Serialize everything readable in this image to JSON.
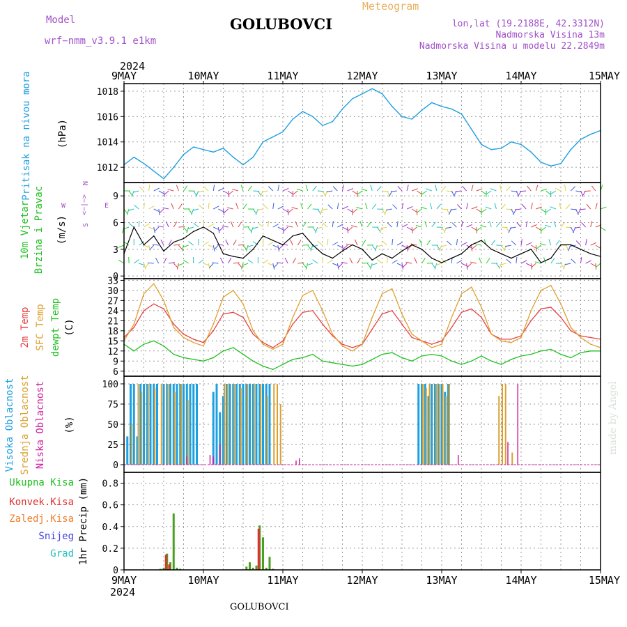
{
  "header": {
    "model_label": "Model",
    "model_name": "wrf−nmm_v3.9.1 e1km",
    "station": "GOLUBOVCI",
    "app_title": "Meteogram",
    "lonlat": "lon,lat (19.2188E, 42.3312N)",
    "elevation": "Nadmorska Visina 13m",
    "model_elevation": "Nadmorska Visina u modelu 22.2849m",
    "footer_station": "GOLUBOVCI",
    "credit": "made by Angel"
  },
  "colors": {
    "pressure": "#1e9fe0",
    "temp2m": "#e84040",
    "sfc": "#e0a030",
    "dewpt": "#20c020",
    "high_cloud": "#1e9fe0",
    "mid_cloud": "#d8a030",
    "low_cloud": "#d020a0",
    "total_precip": "#4aa020",
    "conv_precip": "#e03030",
    "frz_precip": "#f08030",
    "snow": "#4040e0",
    "hail": "#20c0c0",
    "purple_text": "#a050c8"
  },
  "time_axis": {
    "year": "2024",
    "days": [
      "9MAY",
      "10MAY",
      "11MAY",
      "12MAY",
      "13MAY",
      "14MAY",
      "15MAY"
    ]
  },
  "panels": {
    "pressure": {
      "ylabel_a": "Pritisak na nivou mora",
      "unit": "(hPa)",
      "ticks": [
        "1012",
        "1014",
        "1016",
        "1018"
      ]
    },
    "wind": {
      "ylabel_a": "10m Vjetar",
      "ylabel_b": "Brzina i Pravac",
      "unit": "(m/s)",
      "ticks": [
        "0",
        "3",
        "6",
        "9"
      ],
      "compass": {
        "w": "W",
        "e": "E",
        "n": "N",
        "s": "S",
        "arrow": "<−|−>"
      }
    },
    "temp": {
      "ylabel_a": "2m Temp",
      "ylabel_b": "SFC Temp",
      "ylabel_c": "dewpt Temp",
      "unit": "(C)",
      "ticks": [
        "6",
        "9",
        "12",
        "15",
        "18",
        "21",
        "24",
        "27",
        "30",
        "33"
      ]
    },
    "cloud": {
      "ylabel_a": "Visoka Oblacnost",
      "ylabel_b": "Srednja Oblacnost",
      "ylabel_c": "Niska Oblacnost",
      "unit": "(%)",
      "ticks": [
        "0",
        "25",
        "50",
        "75",
        "100"
      ]
    },
    "precip": {
      "legend": [
        "Ukupna Kisa",
        "Konvek.Kisa",
        "Zaledj.Kisa",
        "Snijeg",
        "Grad"
      ],
      "ylabel": "1hr Precip (mm)",
      "ticks": [
        "0",
        "0.2",
        "0.4",
        "0.6",
        "0.8"
      ]
    }
  },
  "chart_data": [
    {
      "type": "line",
      "name": "pressure",
      "x_unit": "hours since 9 MAY 00UTC",
      "ylim": [
        1010.8,
        1018.6
      ],
      "series": [
        {
          "name": "Pritisak na nivou mora",
          "x": [
            0,
            3,
            6,
            9,
            12,
            15,
            18,
            21,
            24,
            27,
            30,
            33,
            36,
            39,
            42,
            45,
            48,
            51,
            54,
            57,
            60,
            63,
            66,
            69,
            72,
            75,
            78,
            81,
            84,
            87,
            90,
            93,
            96,
            99,
            102,
            105,
            108,
            111,
            114,
            117,
            120,
            123,
            126,
            129,
            132,
            135,
            138,
            141,
            144
          ],
          "y": [
            1012.2,
            1012.8,
            1012.3,
            1011.7,
            1011.1,
            1012.0,
            1013.0,
            1013.6,
            1013.4,
            1013.2,
            1013.5,
            1012.8,
            1012.2,
            1012.8,
            1014.0,
            1014.4,
            1014.8,
            1015.8,
            1016.4,
            1016.0,
            1015.3,
            1015.6,
            1016.6,
            1017.4,
            1017.8,
            1018.2,
            1017.8,
            1016.8,
            1016.0,
            1015.8,
            1016.5,
            1017.1,
            1016.8,
            1016.6,
            1016.2,
            1015.0,
            1013.8,
            1013.4,
            1013.5,
            1014.0,
            1013.8,
            1013.2,
            1012.4,
            1012.1,
            1012.3,
            1013.4,
            1014.2,
            1014.6,
            1014.9
          ]
        }
      ]
    },
    {
      "type": "line",
      "name": "wind",
      "x_unit": "hours since 9 MAY 00UTC",
      "ylim": [
        -0.3,
        10.5
      ],
      "series": [
        {
          "name": "wind speed",
          "x": [
            0,
            3,
            6,
            9,
            12,
            15,
            18,
            21,
            24,
            27,
            30,
            33,
            36,
            39,
            42,
            45,
            48,
            51,
            54,
            57,
            60,
            63,
            66,
            69,
            72,
            75,
            78,
            81,
            84,
            87,
            90,
            93,
            96,
            99,
            102,
            105,
            108,
            111,
            114,
            117,
            120,
            123,
            126,
            129,
            132,
            135,
            138,
            141,
            144
          ],
          "y": [
            2.5,
            5.5,
            3.5,
            4.5,
            2.8,
            3.8,
            4.2,
            5.0,
            5.5,
            4.8,
            2.5,
            2.2,
            2.0,
            3.0,
            4.5,
            4.0,
            3.5,
            4.5,
            4.8,
            3.5,
            2.5,
            2.0,
            2.8,
            3.5,
            3.0,
            1.8,
            2.5,
            2.0,
            2.8,
            3.5,
            3.0,
            2.0,
            1.5,
            2.0,
            2.5,
            3.5,
            4.0,
            3.0,
            2.5,
            2.0,
            2.5,
            3.0,
            1.5,
            2.0,
            3.5,
            3.5,
            3.0,
            2.5,
            2.2
          ]
        }
      ]
    },
    {
      "type": "line",
      "name": "temperature",
      "x_unit": "hours since 9 MAY 00UTC",
      "ylim": [
        4.5,
        33.5
      ],
      "series": [
        {
          "name": "2m Temp",
          "x": [
            0,
            3,
            6,
            9,
            12,
            15,
            18,
            21,
            24,
            27,
            30,
            33,
            36,
            39,
            42,
            45,
            48,
            51,
            54,
            57,
            60,
            63,
            66,
            69,
            72,
            75,
            78,
            81,
            84,
            87,
            90,
            93,
            96,
            99,
            102,
            105,
            108,
            111,
            114,
            117,
            120,
            123,
            126,
            129,
            132,
            135,
            138,
            141,
            144
          ],
          "y": [
            16,
            19,
            24,
            26,
            24.5,
            20,
            17,
            15.5,
            14.5,
            18,
            23,
            23.5,
            22,
            17,
            14.5,
            13,
            15,
            20,
            23.5,
            24,
            20,
            16.5,
            14,
            13,
            14,
            18.5,
            23,
            24,
            20,
            16,
            15,
            14,
            15,
            19,
            23.5,
            24.5,
            22,
            17,
            15.5,
            15.5,
            16.5,
            21,
            24.5,
            25,
            22,
            18,
            16.5,
            16,
            15.5
          ]
        },
        {
          "name": "SFC Temp",
          "x": [
            0,
            3,
            6,
            9,
            12,
            15,
            18,
            21,
            24,
            27,
            30,
            33,
            36,
            39,
            42,
            45,
            48,
            51,
            54,
            57,
            60,
            63,
            66,
            69,
            72,
            75,
            78,
            81,
            84,
            87,
            90,
            93,
            96,
            99,
            102,
            105,
            108,
            111,
            114,
            117,
            120,
            123,
            126,
            129,
            132,
            135,
            138,
            141,
            144
          ],
          "y": [
            15,
            20,
            29,
            32,
            27,
            19,
            16,
            14.5,
            13.5,
            20,
            28,
            30,
            26,
            18,
            14,
            12.5,
            14,
            22,
            28.5,
            30,
            24,
            17,
            13.5,
            12,
            14,
            22,
            29,
            30.5,
            23,
            17,
            15,
            13,
            14,
            22,
            29,
            31,
            25,
            17,
            15,
            14.5,
            16,
            24,
            30,
            31.5,
            26,
            19,
            16,
            14,
            13
          ]
        },
        {
          "name": "dewpt Temp",
          "x": [
            0,
            3,
            6,
            9,
            12,
            15,
            18,
            21,
            24,
            27,
            30,
            33,
            36,
            39,
            42,
            45,
            48,
            51,
            54,
            57,
            60,
            63,
            66,
            69,
            72,
            75,
            78,
            81,
            84,
            87,
            90,
            93,
            96,
            99,
            102,
            105,
            108,
            111,
            114,
            117,
            120,
            123,
            126,
            129,
            132,
            135,
            138,
            141,
            144
          ],
          "y": [
            14,
            12,
            14,
            15,
            13.5,
            11,
            10,
            9.5,
            9,
            10,
            12,
            13,
            11,
            9,
            7.5,
            6.5,
            8,
            9.5,
            10,
            11,
            9,
            8.5,
            8,
            7.5,
            8,
            9.5,
            11,
            11.5,
            10,
            9,
            10.5,
            11,
            10.5,
            9,
            8,
            9,
            10.5,
            9,
            8,
            9.5,
            10.5,
            11,
            12,
            12.5,
            11,
            10,
            11.5,
            12,
            12
          ]
        }
      ]
    },
    {
      "type": "bar",
      "name": "cloud",
      "x_unit": "hours since 9 MAY 00UTC",
      "ylim": [
        0,
        100
      ],
      "series": [
        {
          "name": "Visoka Oblacnost",
          "x": [
            1,
            2,
            3,
            4,
            5,
            6,
            7,
            8,
            9,
            10,
            12,
            13,
            14,
            15,
            16,
            17,
            18,
            19,
            20,
            21,
            22,
            27,
            28,
            29,
            30,
            31,
            32,
            33,
            34,
            35,
            36,
            37,
            38,
            39,
            40,
            41,
            42,
            43,
            44,
            89,
            90,
            91,
            92,
            93,
            94,
            95,
            96,
            97,
            98
          ],
          "y": [
            35,
            100,
            100,
            35,
            100,
            100,
            100,
            100,
            100,
            100,
            100,
            100,
            100,
            100,
            100,
            100,
            100,
            100,
            100,
            100,
            100,
            90,
            100,
            65,
            85,
            100,
            100,
            100,
            100,
            100,
            100,
            100,
            100,
            100,
            100,
            100,
            100,
            100,
            100,
            100,
            100,
            100,
            85,
            100,
            100,
            100,
            100,
            90,
            100
          ]
        },
        {
          "name": "Srednja Oblacnost",
          "x": [
            2,
            4,
            5,
            7,
            9,
            11,
            13,
            15,
            17,
            19,
            30,
            31,
            33,
            35,
            37,
            39,
            41,
            43,
            45,
            46,
            47,
            90,
            91,
            92,
            94,
            95,
            96,
            97,
            98,
            113,
            114,
            115,
            117
          ],
          "y": [
            50,
            100,
            90,
            100,
            95,
            100,
            100,
            90,
            100,
            80,
            100,
            100,
            100,
            95,
            100,
            100,
            100,
            85,
            100,
            100,
            75,
            100,
            95,
            100,
            100,
            100,
            100,
            85,
            100,
            85,
            100,
            100,
            15
          ]
        },
        {
          "name": "Niska Oblacnost",
          "x": [
            19,
            26,
            27,
            29,
            52,
            53,
            101,
            116,
            119
          ],
          "y": [
            10,
            12,
            10,
            25,
            5,
            8,
            12,
            28,
            100
          ]
        }
      ]
    },
    {
      "type": "bar",
      "name": "precipitation",
      "x_unit": "hours since 9 MAY 00UTC",
      "ylim": [
        0,
        0.9
      ],
      "series": [
        {
          "name": "Ukupna Kisa",
          "x": [
            11,
            12,
            13,
            14,
            15,
            16,
            17,
            37,
            38,
            39,
            40,
            41,
            42,
            43,
            44,
            45
          ],
          "y": [
            0.01,
            0.02,
            0.15,
            0.07,
            0.52,
            0.02,
            0.01,
            0.03,
            0.07,
            0.02,
            0.04,
            0.41,
            0.3,
            0.02,
            0.12,
            0.01
          ]
        },
        {
          "name": "Konvek.Kisa",
          "x": [
            13,
            14,
            41
          ],
          "y": [
            0.14,
            0.05,
            0.38
          ]
        }
      ]
    }
  ]
}
